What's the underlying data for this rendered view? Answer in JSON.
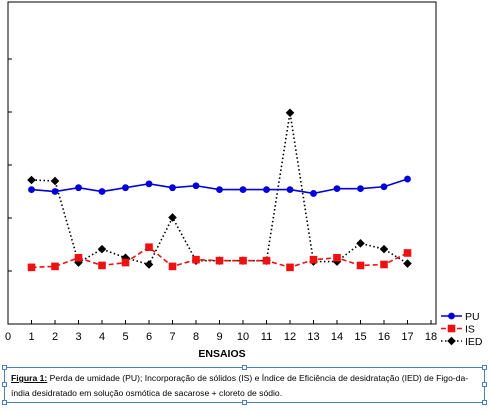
{
  "chart_data": {
    "type": "line",
    "x": [
      1,
      2,
      3,
      4,
      5,
      6,
      7,
      8,
      9,
      10,
      11,
      12,
      13,
      14,
      15,
      16,
      17
    ],
    "xlabel": "ENSAIOS",
    "x_ticks": [
      "0",
      "1",
      "2",
      "3",
      "4",
      "5",
      "6",
      "7",
      "8",
      "9",
      "10",
      "11",
      "12",
      "13",
      "14",
      "15",
      "16",
      "17",
      "18"
    ],
    "xlim": [
      0,
      18
    ],
    "grid": false,
    "legend_position": "bottom-right",
    "series": [
      {
        "name": "PU",
        "color": "#0000dd",
        "marker": "circle",
        "line": "solid",
        "values": [
          7.0,
          6.9,
          7.1,
          6.9,
          7.1,
          7.3,
          7.1,
          7.2,
          7.0,
          7.0,
          7.0,
          7.0,
          6.8,
          7.05,
          7.05,
          7.15,
          7.55
        ]
      },
      {
        "name": "IS",
        "color": "#ee1111",
        "marker": "square",
        "line": "dashed",
        "values": [
          2.95,
          3.0,
          3.45,
          3.05,
          3.2,
          4.0,
          3.0,
          3.35,
          3.3,
          3.3,
          3.3,
          2.95,
          3.35,
          3.45,
          3.05,
          3.1,
          3.7
        ]
      },
      {
        "name": "IED",
        "color": "#000000",
        "marker": "diamond",
        "line": "dotted",
        "values": [
          7.5,
          7.45,
          3.2,
          3.9,
          3.45,
          3.1,
          5.55,
          3.3,
          3.3,
          3.3,
          3.3,
          11.0,
          3.25,
          3.25,
          4.2,
          3.9,
          3.15
        ]
      }
    ]
  },
  "caption": {
    "label": "Figura 1:",
    "text": " Perda de umidade (PU); Incorporação de sólidos (IS) e Índice de Eficiência de desidratação (IED) de Figo-da-índia desidratado em solução osmótica de sacarose + cloreto de sódio."
  }
}
